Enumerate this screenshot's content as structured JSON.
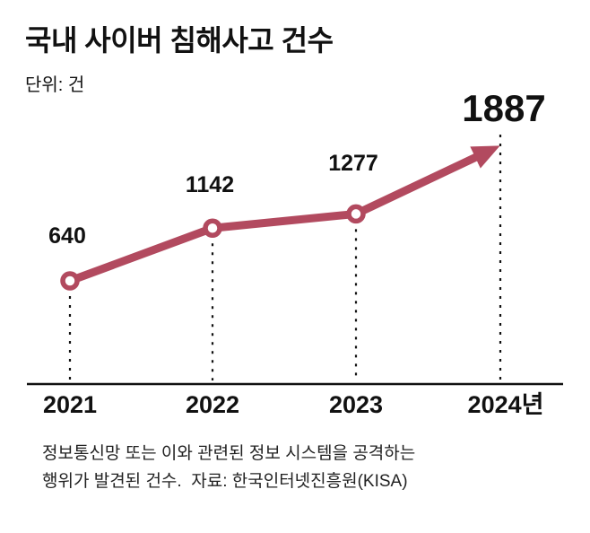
{
  "header": {
    "title": "국내 사이버 침해사고 건수",
    "unit_label": "단위: 건"
  },
  "chart_data": {
    "type": "line",
    "title": "국내 사이버 침해사고 건수",
    "unit": "건",
    "categories": [
      "2021",
      "2022",
      "2023",
      "2024년"
    ],
    "values": [
      640,
      1142,
      1277,
      1887
    ],
    "series_color": "#b24a5f",
    "marker_style": "open-circle",
    "last_point_style": "arrow",
    "axis_color": "#111111",
    "grid": false,
    "legend": false,
    "ylim": [
      0,
      2000
    ]
  },
  "footnote": {
    "line1": "정보통신망 또는 이와 관련된 정보 시스템을 공격하는",
    "line2": "행위가 발견된 건수.  자료: 한국인터넷진흥원(KISA)"
  }
}
